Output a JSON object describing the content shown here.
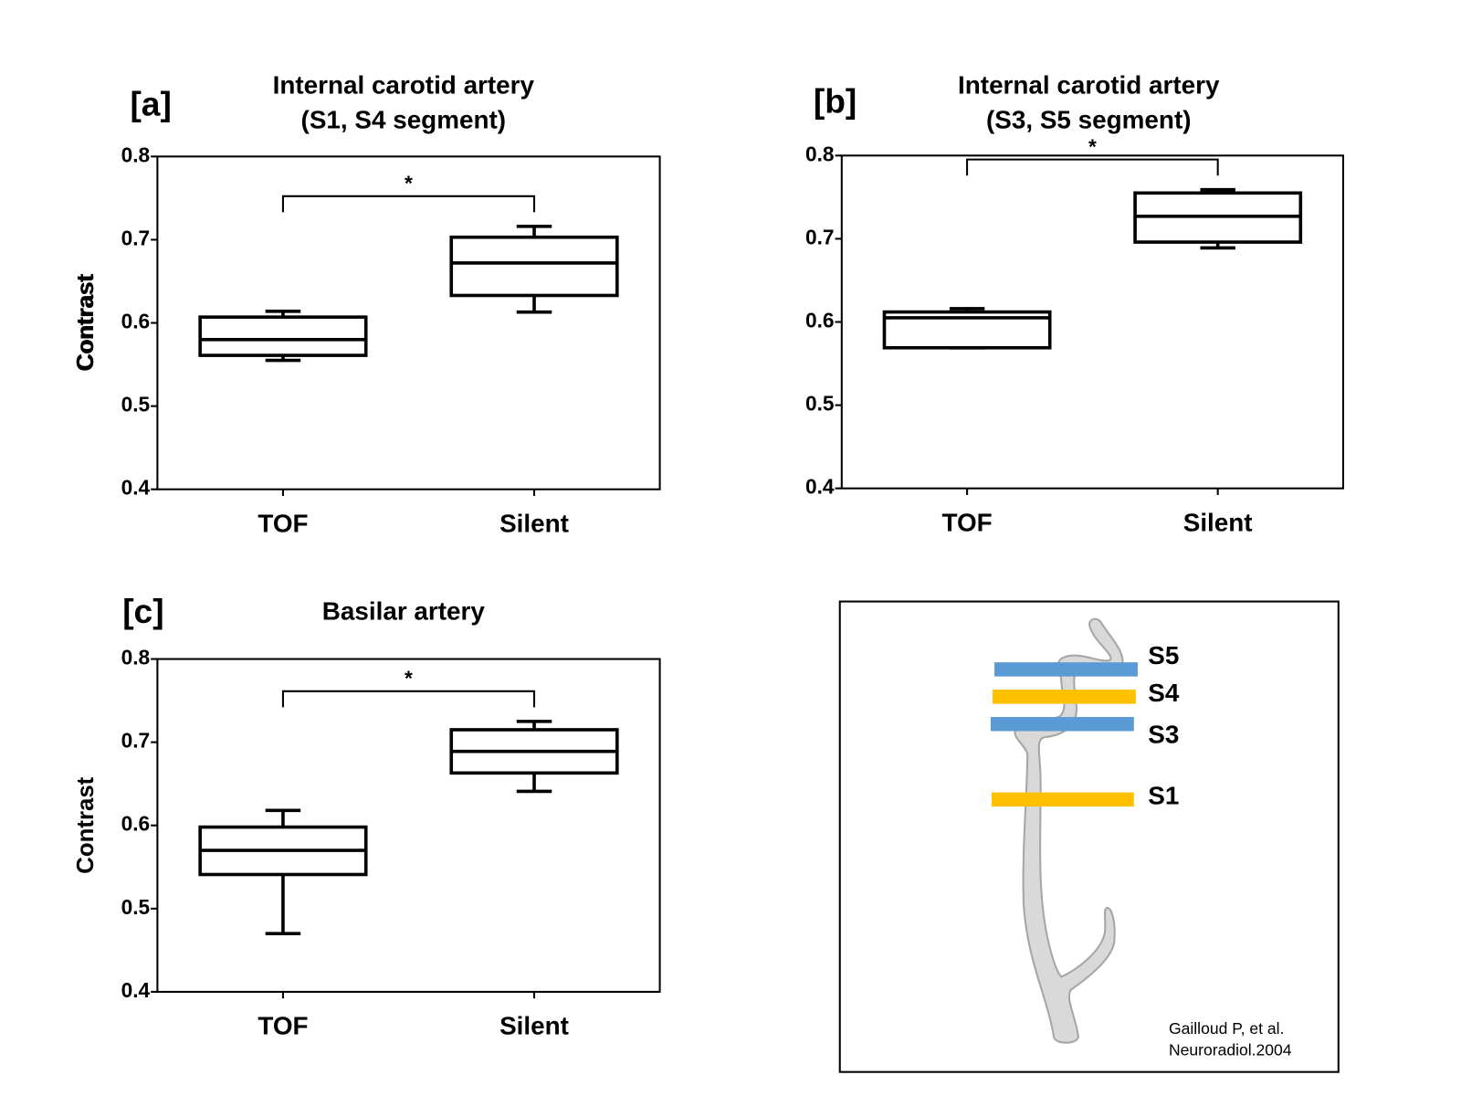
{
  "chart_data": [
    {
      "type": "box",
      "panel_label": "[a]",
      "title": [
        "Internal carotid artery",
        "(S1, S4 segment)"
      ],
      "ylabel": "Contrast",
      "categories": [
        "TOF",
        "Silent"
      ],
      "boxes": [
        {
          "min": 0.555,
          "q1": 0.561,
          "median": 0.58,
          "q3": 0.607,
          "max": 0.614
        },
        {
          "min": 0.613,
          "q1": 0.633,
          "median": 0.672,
          "q3": 0.703,
          "max": 0.716
        }
      ],
      "annotation": "*",
      "ylim": [
        0.4,
        0.8
      ],
      "yticks": [
        0.4,
        0.5,
        0.6,
        0.7,
        0.8
      ],
      "color": "#000000"
    },
    {
      "type": "box",
      "panel_label": "[b]",
      "title": [
        "Internal carotid artery",
        "(S3, S5 segment)"
      ],
      "ylabel": "Contrast",
      "categories": [
        "TOF",
        "Silent"
      ],
      "boxes": [
        {
          "min": 0.569,
          "q1": 0.569,
          "median": 0.605,
          "q3": 0.612,
          "max": 0.616
        },
        {
          "min": 0.689,
          "q1": 0.696,
          "median": 0.727,
          "q3": 0.755,
          "max": 0.759
        }
      ],
      "annotation": "*",
      "ylim": [
        0.4,
        0.8
      ],
      "yticks": [
        0.4,
        0.5,
        0.6,
        0.7,
        0.8
      ],
      "color": "#000000"
    },
    {
      "type": "box",
      "panel_label": "[c]",
      "title": [
        "Basilar artery"
      ],
      "ylabel": "Contrast",
      "categories": [
        "TOF",
        "Silent"
      ],
      "boxes": [
        {
          "min": 0.47,
          "q1": 0.541,
          "median": 0.57,
          "q3": 0.598,
          "max": 0.618
        },
        {
          "min": 0.641,
          "q1": 0.663,
          "median": 0.689,
          "q3": 0.715,
          "max": 0.725
        }
      ],
      "annotation": "*",
      "ylim": [
        0.4,
        0.8
      ],
      "yticks": [
        0.4,
        0.5,
        0.6,
        0.7,
        0.8
      ],
      "color": "#000000"
    }
  ],
  "diagram": {
    "segments": [
      {
        "label": "S5",
        "color": "#5b9bd5"
      },
      {
        "label": "S4",
        "color": "#ffc000"
      },
      {
        "label": "S3",
        "color": "#5b9bd5"
      },
      {
        "label": "S1",
        "color": "#ffc000"
      }
    ],
    "citation": [
      "Gailloud P, et al.",
      "Neuroradiol.2004"
    ]
  }
}
